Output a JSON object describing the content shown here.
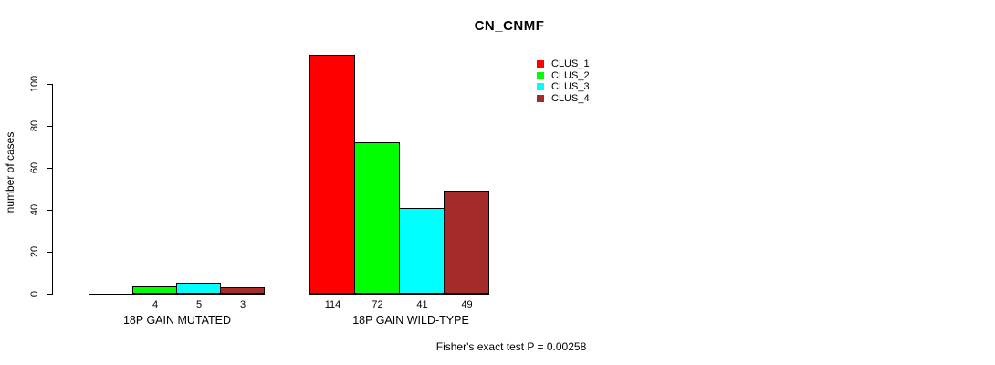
{
  "chart_data": {
    "type": "bar",
    "title": "CN_CNMF",
    "ylabel": "number of cases",
    "xlabel": "",
    "categories": [
      "18P GAIN MUTATED",
      "18P GAIN WILD-TYPE"
    ],
    "series": [
      {
        "name": "CLUS_1",
        "color": "#FF0000",
        "values": [
          0,
          114
        ]
      },
      {
        "name": "CLUS_2",
        "color": "#00FF00",
        "values": [
          4,
          72
        ]
      },
      {
        "name": "CLUS_3",
        "color": "#00FFFF",
        "values": [
          5,
          41
        ]
      },
      {
        "name": "CLUS_4",
        "color": "#A52A2A",
        "values": [
          3,
          49
        ]
      }
    ],
    "bar_value_labels": [
      [
        "",
        "4",
        "5",
        "3"
      ],
      [
        "114",
        "72",
        "41",
        "49"
      ]
    ],
    "yticks": [
      0,
      20,
      40,
      60,
      80,
      100
    ],
    "ylim": [
      0,
      115
    ],
    "grid": false,
    "legend": {
      "position": "top-right",
      "entries": [
        {
          "label": "CLUS_1",
          "color": "#FF0000"
        },
        {
          "label": "CLUS_2",
          "color": "#00FF00"
        },
        {
          "label": "CLUS_3",
          "color": "#00FFFF"
        },
        {
          "label": "CLUS_4",
          "color": "#A52A2A"
        }
      ]
    },
    "annotation": "Fisher's exact test P = 0.00258",
    "axis_color": "#000000",
    "background": "#FFFFFF"
  }
}
